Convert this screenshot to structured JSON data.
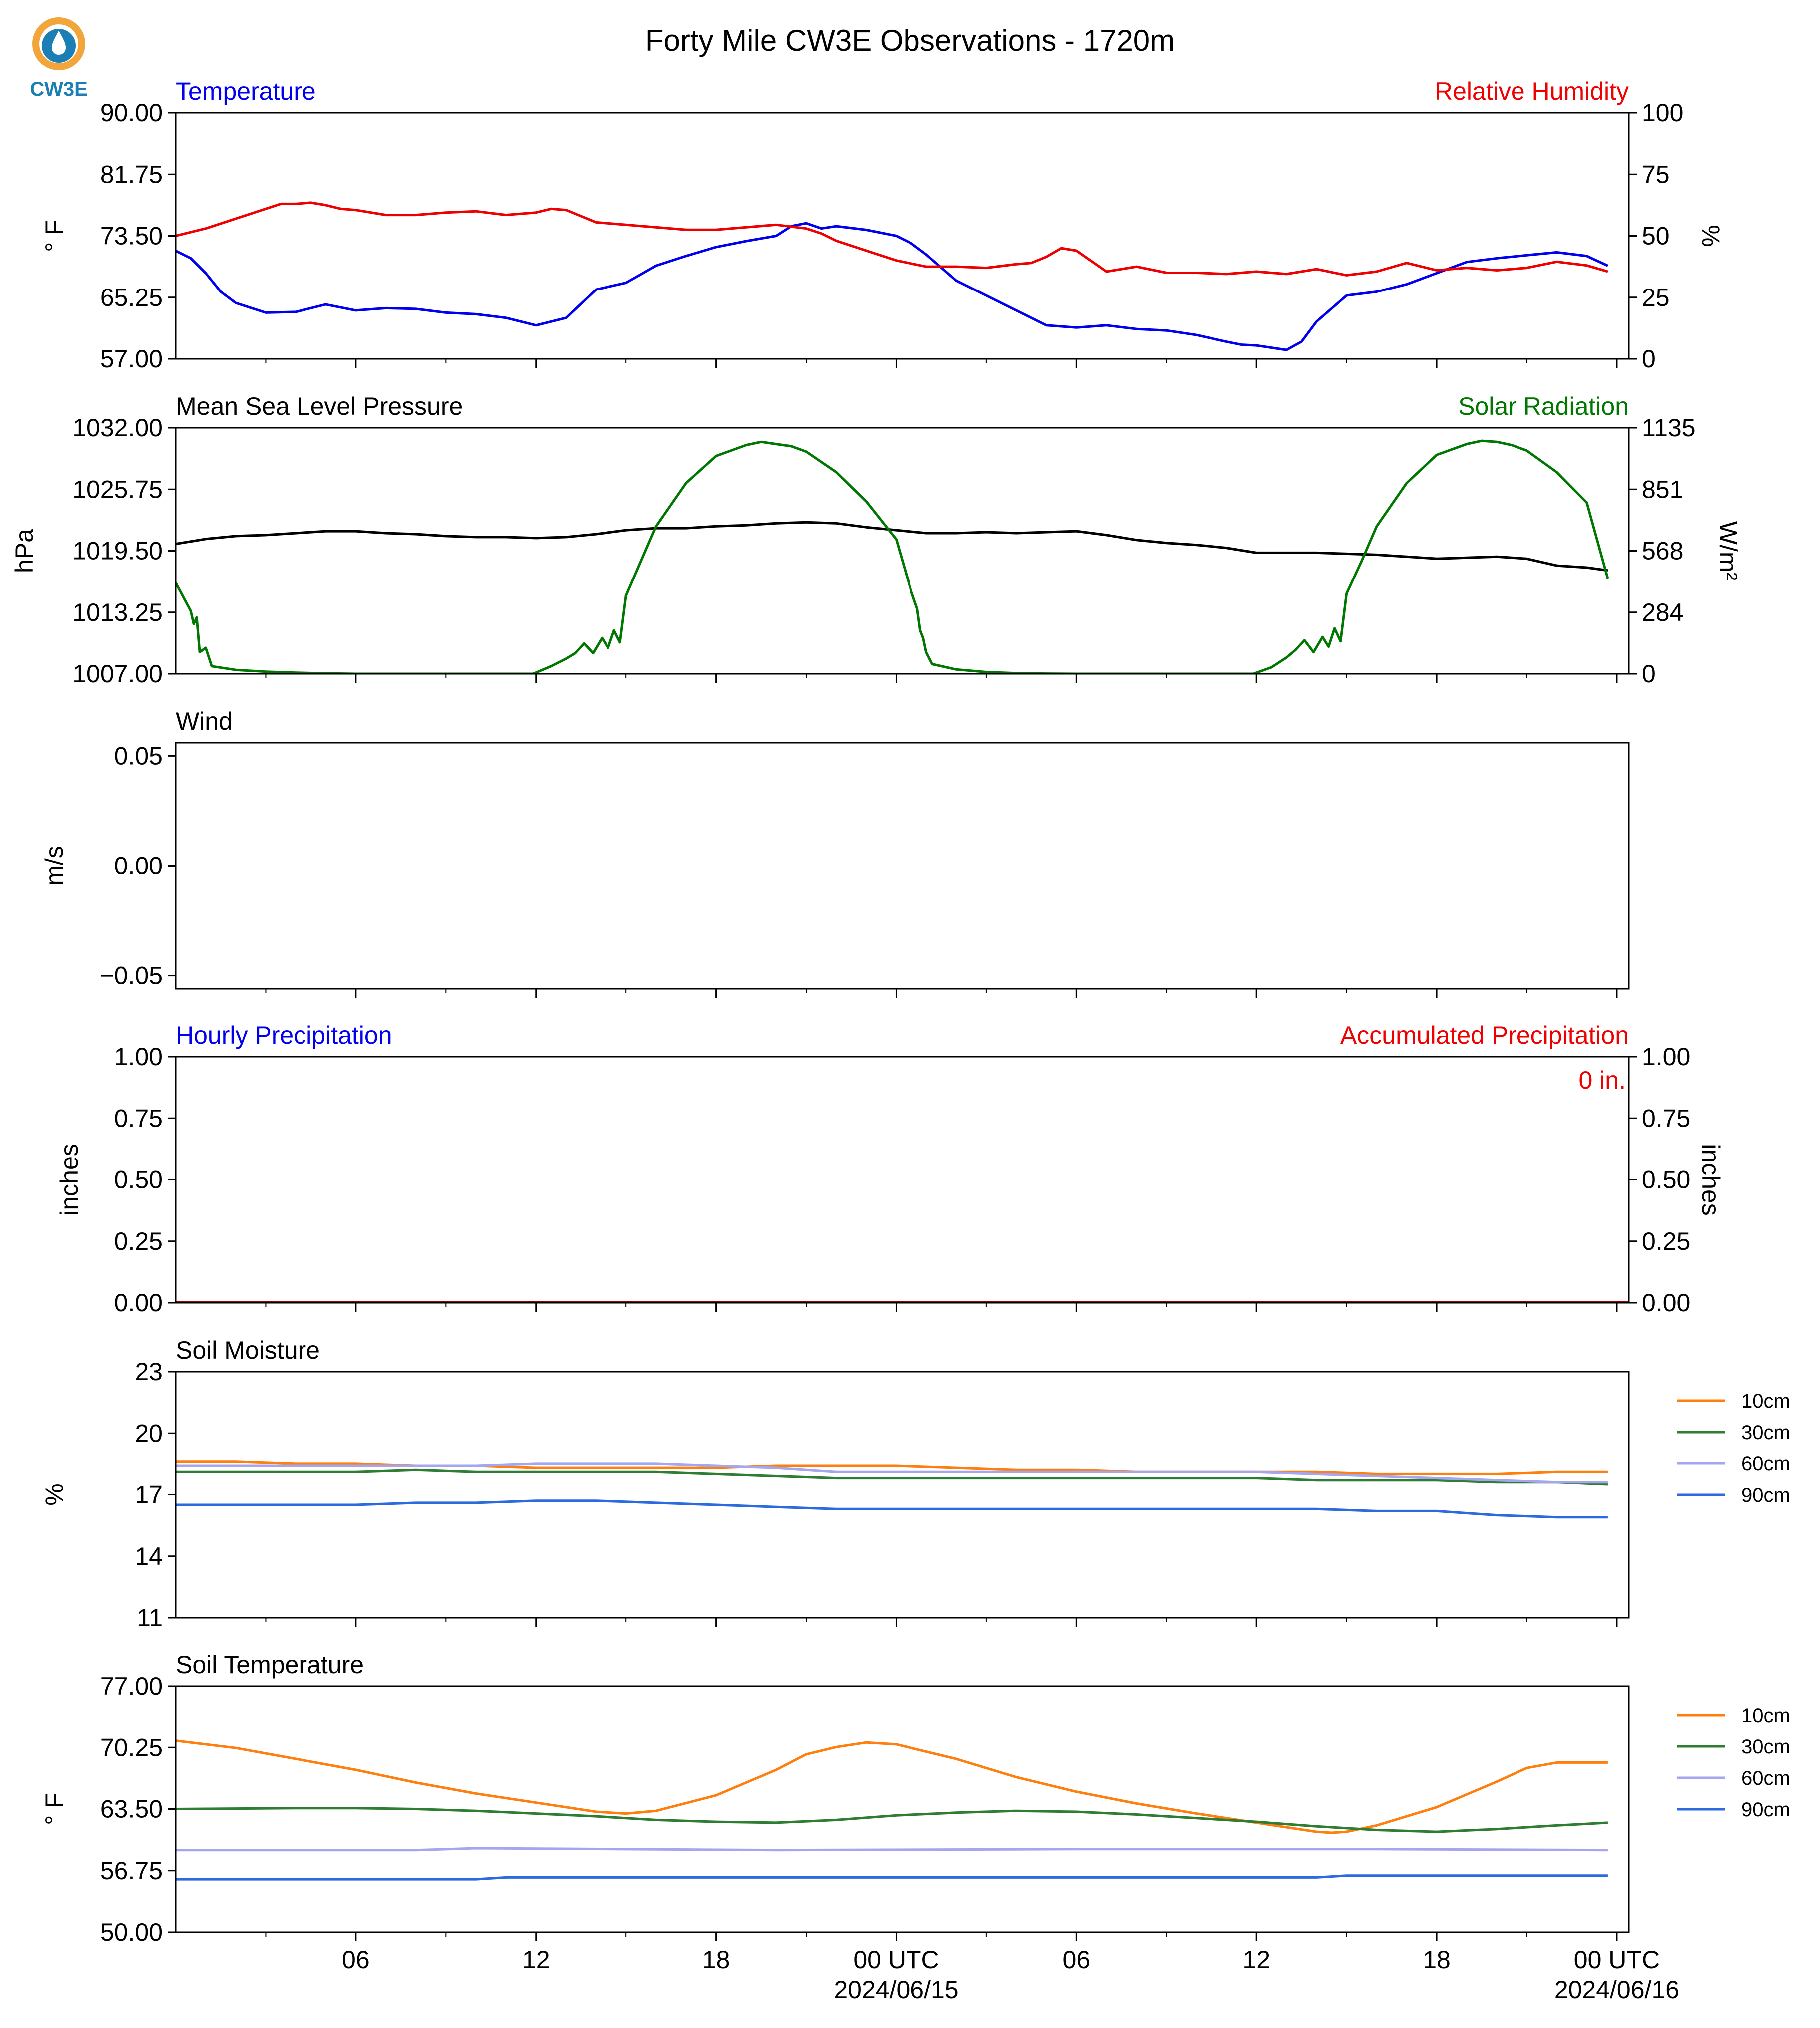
{
  "page": {
    "title": "Forty Mile CW3E Observations - 1720m",
    "logo_text": "CW3E",
    "xaxis": {
      "tick_labels": [
        "06",
        "12",
        "18",
        "00 UTC",
        "06",
        "12",
        "18",
        "00 UTC"
      ],
      "date_labels": [
        "2024/06/15",
        "2024/06/16"
      ]
    }
  },
  "chart_data": [
    {
      "type": "line",
      "title_left": "Temperature",
      "title_right": "Relative Humidity",
      "ylabel_left": "° F",
      "ylabel_right": "%",
      "left_ticks": [
        "57.00",
        "65.25",
        "73.50",
        "81.75",
        "90.00"
      ],
      "right_ticks": [
        "0",
        "25",
        "50",
        "75",
        "100"
      ],
      "ylim_left": [
        57,
        90
      ],
      "ylim_right": [
        0,
        100
      ],
      "colors": {
        "temperature": "#0000ee",
        "humidity": "#ee0000"
      },
      "series": [
        {
          "name": "Temperature",
          "axis": "left",
          "color": "#0000ee",
          "x": [
            0,
            0.5,
            1,
            1.5,
            2,
            3,
            4,
            5,
            6,
            7,
            8,
            9,
            10,
            11,
            11.5,
            12,
            12.5,
            13,
            14,
            15,
            16,
            17,
            18,
            19,
            20,
            20.5,
            21,
            21.5,
            22,
            23,
            24,
            24.5,
            25,
            26,
            27,
            28,
            29,
            30,
            31,
            32,
            33,
            34,
            35,
            35.5,
            36,
            36.5,
            37,
            37.5,
            38,
            39,
            40,
            41,
            42,
            43,
            44,
            45,
            46,
            47,
            47.7
          ],
          "y": [
            71.5,
            70.5,
            68.5,
            66,
            64.5,
            63.2,
            63.3,
            64.3,
            63.5,
            63.8,
            63.7,
            63.2,
            63.0,
            62.5,
            62.0,
            61.5,
            62.0,
            62.5,
            66.3,
            67.2,
            69.5,
            70.8,
            72.0,
            72.8,
            73.5,
            74.8,
            75.2,
            74.5,
            74.8,
            74.3,
            73.5,
            72.5,
            71.0,
            67.5,
            65.5,
            63.5,
            61.5,
            61.2,
            61.5,
            61.0,
            60.8,
            60.2,
            59.3,
            58.9,
            58.8,
            58.5,
            58.2,
            59.3,
            62.0,
            65.5,
            66.0,
            67.0,
            68.5,
            70.0,
            70.5,
            70.9,
            71.3,
            70.8,
            69.5
          ]
        },
        {
          "name": "Relative Humidity",
          "axis": "right",
          "color": "#ee0000",
          "x": [
            0,
            1,
            2,
            3,
            3.5,
            4,
            4.5,
            5,
            5.5,
            6,
            7,
            8,
            9,
            10,
            11,
            12,
            12.5,
            13,
            14,
            15,
            16,
            17,
            18,
            19,
            20,
            21,
            21.5,
            22,
            23,
            24,
            25,
            26,
            27,
            28,
            28.5,
            29,
            29.5,
            30,
            31,
            32,
            33,
            34,
            35,
            36,
            37,
            38,
            39,
            40,
            41,
            42,
            43,
            44,
            45,
            46,
            47,
            47.7
          ],
          "y": [
            50,
            53,
            57,
            61,
            63,
            63,
            63.5,
            62.5,
            61,
            60.5,
            58.5,
            58.5,
            59.5,
            60,
            58.5,
            59.5,
            61,
            60.5,
            55.5,
            54.5,
            53.5,
            52.5,
            52.5,
            53.5,
            54.5,
            53,
            51,
            48,
            44,
            40,
            37.5,
            37.5,
            37,
            38.5,
            39,
            41.5,
            45,
            44,
            35.5,
            37.5,
            35,
            35,
            34.5,
            35.5,
            34.5,
            36.5,
            34,
            35.5,
            39,
            36,
            37,
            36,
            37,
            39.5,
            38,
            35.5
          ]
        }
      ]
    },
    {
      "type": "line",
      "title_left": "Mean Sea Level Pressure",
      "title_right": "Solar Radiation",
      "ylabel_left": "hPa",
      "ylabel_right": "W/m²",
      "left_ticks": [
        "1007.00",
        "1013.25",
        "1019.50",
        "1025.75",
        "1032.00"
      ],
      "right_ticks": [
        "0",
        "284",
        "568",
        "851",
        "1135"
      ],
      "ylim_left": [
        1007,
        1032
      ],
      "ylim_right": [
        0,
        1135
      ],
      "colors": {
        "pressure": "#000000",
        "solar": "#007700"
      },
      "series": [
        {
          "name": "Mean Sea Level Pressure",
          "axis": "left",
          "color": "#000000",
          "x": [
            0,
            1,
            2,
            3,
            4,
            5,
            6,
            7,
            8,
            9,
            10,
            11,
            12,
            13,
            14,
            15,
            16,
            17,
            18,
            19,
            20,
            21,
            22,
            23,
            24,
            25,
            26,
            27,
            28,
            29,
            30,
            31,
            32,
            33,
            34,
            35,
            36,
            37,
            38,
            39,
            40,
            41,
            42,
            43,
            44,
            45,
            46,
            47,
            47.7
          ],
          "y": [
            1020.2,
            1020.7,
            1021.0,
            1021.1,
            1021.3,
            1021.5,
            1021.5,
            1021.3,
            1021.2,
            1021.0,
            1020.9,
            1020.9,
            1020.8,
            1020.9,
            1021.2,
            1021.6,
            1021.8,
            1021.8,
            1022.0,
            1022.1,
            1022.3,
            1022.4,
            1022.3,
            1021.9,
            1021.6,
            1021.3,
            1021.3,
            1021.4,
            1021.3,
            1021.4,
            1021.5,
            1021.1,
            1020.6,
            1020.3,
            1020.1,
            1019.8,
            1019.3,
            1019.3,
            1019.3,
            1019.2,
            1019.1,
            1018.9,
            1018.7,
            1018.8,
            1018.9,
            1018.7,
            1018.0,
            1017.8,
            1017.5
          ]
        },
        {
          "name": "Solar Radiation",
          "axis": "right",
          "color": "#007700",
          "x": [
            0,
            0.5,
            0.6,
            0.7,
            0.8,
            1.0,
            1.2,
            2,
            3,
            4,
            5,
            6,
            7,
            8,
            9,
            10,
            11,
            11.9,
            12.5,
            13,
            13.3,
            13.6,
            13.9,
            14.2,
            14.4,
            14.6,
            14.8,
            15,
            15.5,
            16,
            17,
            18,
            19,
            19.5,
            20,
            20.5,
            21,
            22,
            23,
            24,
            24.5,
            24.7,
            24.8,
            24.9,
            25.0,
            25.2,
            26,
            27,
            28,
            29,
            30,
            31,
            32,
            33,
            34,
            35,
            35.9,
            36.5,
            37,
            37.3,
            37.6,
            37.9,
            38.2,
            38.4,
            38.6,
            38.8,
            39,
            39.5,
            40,
            41,
            42,
            43,
            43.5,
            44,
            44.5,
            45,
            46,
            47,
            47.7
          ],
          "y": [
            420,
            290,
            230,
            260,
            100,
            120,
            35,
            18,
            10,
            5,
            2,
            0,
            0,
            0,
            0,
            0,
            0,
            0,
            35,
            70,
            95,
            140,
            95,
            165,
            120,
            200,
            145,
            360,
            520,
            680,
            880,
            1005,
            1055,
            1070,
            1060,
            1050,
            1025,
            930,
            795,
            620,
            380,
            300,
            200,
            165,
            100,
            45,
            20,
            8,
            3,
            1,
            0,
            0,
            0,
            0,
            0,
            0,
            0,
            30,
            75,
            110,
            155,
            100,
            170,
            125,
            210,
            150,
            370,
            520,
            680,
            880,
            1010,
            1060,
            1075,
            1070,
            1055,
            1030,
            930,
            790,
            440
          ]
        }
      ]
    },
    {
      "type": "line",
      "title_left": "Wind",
      "ylabel_left": "m/s",
      "left_ticks": [
        "−0.05",
        "0.00",
        "0.05"
      ],
      "ylim_left": [
        -0.056,
        0.056
      ],
      "series": []
    },
    {
      "type": "bar",
      "title_left": "Hourly Precipitation",
      "title_right": "Accumulated Precipitation",
      "annotation": "0 in.",
      "ylabel_left": "inches",
      "ylabel_right": "inches",
      "left_ticks": [
        "0.00",
        "0.25",
        "0.50",
        "0.75",
        "1.00"
      ],
      "right_ticks": [
        "0.00",
        "0.25",
        "0.50",
        "0.75",
        "1.00"
      ],
      "ylim_left": [
        0,
        1
      ],
      "ylim_right": [
        0,
        1
      ],
      "series": [
        {
          "name": "Hourly Precipitation",
          "values": [
            0
          ],
          "color": "#0000ee"
        },
        {
          "name": "Accumulated Precipitation",
          "values": [
            0
          ],
          "color": "#990000"
        }
      ]
    },
    {
      "type": "line",
      "title_left": "Soil Moisture",
      "ylabel_left": "%",
      "left_ticks": [
        "11",
        "14",
        "17",
        "20",
        "23"
      ],
      "ylim_left": [
        11,
        23
      ],
      "legend_position": "right",
      "series": [
        {
          "name": "10cm",
          "color": "#ff7f0e",
          "x": [
            0,
            2,
            4,
            6,
            8,
            10,
            12,
            14,
            16,
            18,
            20,
            22,
            24,
            26,
            28,
            30,
            32,
            34,
            36,
            38,
            40,
            42,
            44,
            46,
            47.7
          ],
          "y": [
            18.6,
            18.6,
            18.5,
            18.5,
            18.4,
            18.4,
            18.3,
            18.3,
            18.3,
            18.3,
            18.4,
            18.4,
            18.4,
            18.3,
            18.2,
            18.2,
            18.1,
            18.1,
            18.1,
            18.1,
            18.0,
            18.0,
            18.0,
            18.1,
            18.1
          ]
        },
        {
          "name": "30cm",
          "color": "#2e7d32",
          "x": [
            0,
            2,
            4,
            6,
            8,
            10,
            12,
            14,
            16,
            18,
            20,
            22,
            24,
            26,
            28,
            30,
            32,
            34,
            36,
            38,
            40,
            42,
            44,
            46,
            47.7
          ],
          "y": [
            18.1,
            18.1,
            18.1,
            18.1,
            18.2,
            18.1,
            18.1,
            18.1,
            18.1,
            18.0,
            17.9,
            17.8,
            17.8,
            17.8,
            17.8,
            17.8,
            17.8,
            17.8,
            17.8,
            17.7,
            17.7,
            17.7,
            17.6,
            17.6,
            17.5
          ]
        },
        {
          "name": "60cm",
          "color": "#a6a6f0",
          "x": [
            0,
            2,
            4,
            6,
            8,
            10,
            12,
            14,
            16,
            18,
            20,
            22,
            24,
            26,
            28,
            30,
            32,
            34,
            36,
            38,
            40,
            42,
            44,
            46,
            47.7
          ],
          "y": [
            18.4,
            18.4,
            18.4,
            18.4,
            18.4,
            18.4,
            18.5,
            18.5,
            18.5,
            18.4,
            18.3,
            18.1,
            18.1,
            18.1,
            18.1,
            18.1,
            18.1,
            18.1,
            18.1,
            18.0,
            17.9,
            17.8,
            17.7,
            17.6,
            17.6
          ]
        },
        {
          "name": "90cm",
          "color": "#2c6bdf",
          "x": [
            0,
            2,
            4,
            6,
            8,
            10,
            12,
            14,
            16,
            18,
            20,
            22,
            24,
            26,
            28,
            30,
            32,
            34,
            36,
            38,
            40,
            42,
            44,
            46,
            47.7
          ],
          "y": [
            16.5,
            16.5,
            16.5,
            16.5,
            16.6,
            16.6,
            16.7,
            16.7,
            16.6,
            16.5,
            16.4,
            16.3,
            16.3,
            16.3,
            16.3,
            16.3,
            16.3,
            16.3,
            16.3,
            16.3,
            16.2,
            16.2,
            16.0,
            15.9,
            15.9
          ]
        }
      ]
    },
    {
      "type": "line",
      "title_left": "Soil Temperature",
      "ylabel_left": "° F",
      "left_ticks": [
        "50.00",
        "56.75",
        "63.50",
        "70.25",
        "77.00"
      ],
      "ylim_left": [
        50,
        77
      ],
      "legend_position": "right",
      "series": [
        {
          "name": "10cm",
          "color": "#ff7f0e",
          "x": [
            0,
            2,
            4,
            6,
            8,
            10,
            12,
            14,
            15,
            16,
            18,
            20,
            21,
            22,
            23,
            24,
            26,
            28,
            30,
            32,
            34,
            36,
            38,
            38.5,
            39,
            40,
            42,
            44,
            45,
            46,
            47.7
          ],
          "y": [
            71.0,
            70.2,
            69.0,
            67.8,
            66.4,
            65.2,
            64.2,
            63.2,
            63.0,
            63.3,
            65.0,
            67.8,
            69.5,
            70.3,
            70.8,
            70.6,
            69.0,
            67.0,
            65.4,
            64.1,
            63.0,
            62.0,
            61.0,
            60.9,
            61.0,
            61.7,
            63.7,
            66.5,
            68.0,
            68.6,
            68.6
          ]
        },
        {
          "name": "30cm",
          "color": "#2e7d32",
          "x": [
            0,
            4,
            6,
            8,
            10,
            12,
            14,
            16,
            18,
            20,
            22,
            24,
            26,
            28,
            30,
            32,
            34,
            36,
            38,
            40,
            42,
            44,
            46,
            47.7
          ],
          "y": [
            63.5,
            63.6,
            63.6,
            63.5,
            63.3,
            63.0,
            62.7,
            62.3,
            62.1,
            62.0,
            62.3,
            62.8,
            63.1,
            63.3,
            63.2,
            62.9,
            62.5,
            62.1,
            61.6,
            61.2,
            61.0,
            61.3,
            61.7,
            62.0
          ]
        },
        {
          "name": "60cm",
          "color": "#a6a6f0",
          "x": [
            0,
            8,
            10,
            20,
            30,
            40,
            47.7
          ],
          "y": [
            59.0,
            59.0,
            59.2,
            59.0,
            59.1,
            59.1,
            59.0
          ]
        },
        {
          "name": "90cm",
          "color": "#2c6bdf",
          "x": [
            0,
            10,
            11,
            20,
            30,
            38,
            39,
            47.7
          ],
          "y": [
            55.8,
            55.8,
            56.0,
            56.0,
            56.0,
            56.0,
            56.2,
            56.2
          ]
        }
      ]
    }
  ]
}
